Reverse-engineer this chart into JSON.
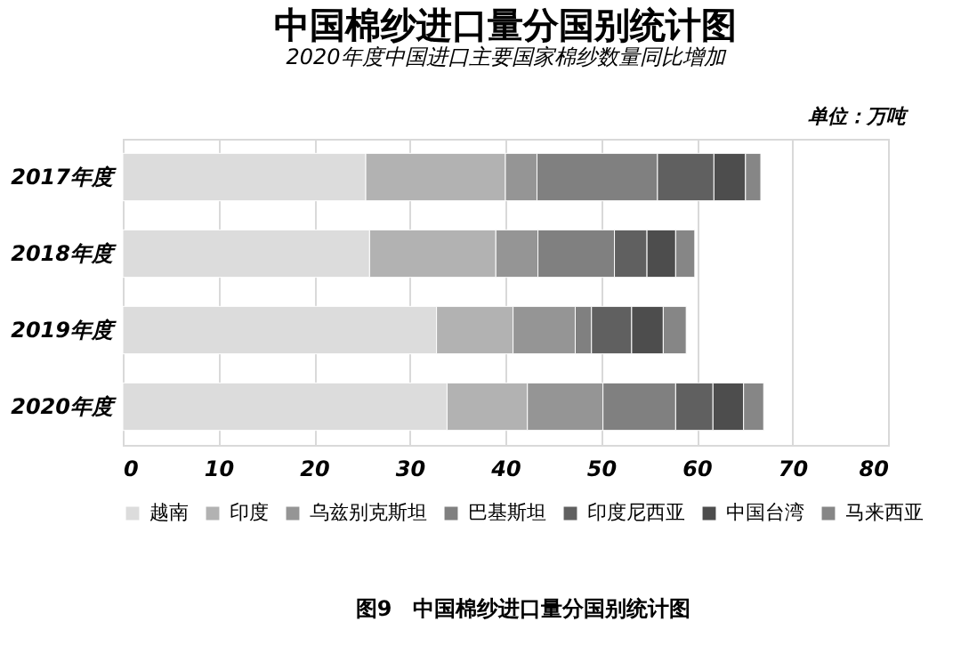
{
  "chart_data": {
    "type": "bar",
    "orientation": "horizontal",
    "stacked": true,
    "title": "中国棉纱进口量分国别统计图",
    "subtitle": "2020年度中国进口主要国家棉纱数量同比增加",
    "annotations": [
      "单位：万吨",
      "图9　中国棉纱进口量分国别统计图"
    ],
    "categories": [
      "2017年度",
      "2018年度",
      "2019年度",
      "2020年度"
    ],
    "series": [
      {
        "name": "越南",
        "color": "#dcdcdc",
        "values": [
          25.4,
          25.8,
          32.8,
          33.9
        ]
      },
      {
        "name": "印度",
        "color": "#b2b2b2",
        "values": [
          14.6,
          13.2,
          8.0,
          8.4
        ]
      },
      {
        "name": "乌兹别克斯坦",
        "color": "#959595",
        "values": [
          3.3,
          4.4,
          6.5,
          7.9
        ]
      },
      {
        "name": "巴基斯坦",
        "color": "#808080",
        "values": [
          12.6,
          8.0,
          1.7,
          7.6
        ]
      },
      {
        "name": "印度尼西亚",
        "color": "#606060",
        "values": [
          5.9,
          3.4,
          4.2,
          3.9
        ]
      },
      {
        "name": "中国台湾",
        "color": "#4d4d4d",
        "values": [
          3.3,
          3.0,
          3.3,
          3.2
        ]
      },
      {
        "name": "马来西亚",
        "color": "#868686",
        "values": [
          1.6,
          2.0,
          2.4,
          2.1
        ]
      }
    ],
    "xlim": [
      0,
      80
    ],
    "xticks": [
      0,
      10,
      20,
      30,
      40,
      50,
      60,
      70,
      80
    ],
    "grid": "x",
    "legend": "bottom"
  }
}
